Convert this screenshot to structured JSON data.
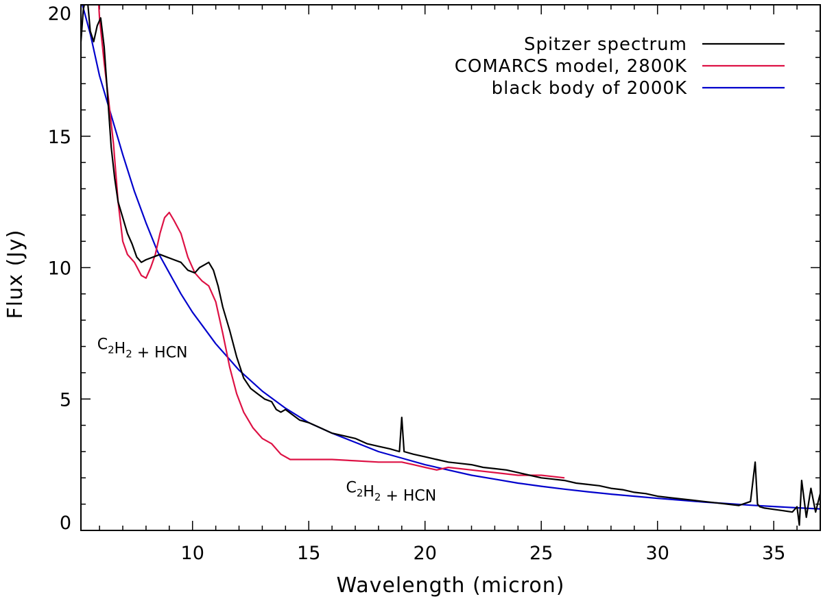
{
  "chart_data": {
    "type": "line",
    "title": "",
    "xlabel": "Wavelength (micron)",
    "ylabel": "Flux (Jy)",
    "xlim": [
      5.2,
      37.0
    ],
    "ylim": [
      0,
      20
    ],
    "xticks": [
      10,
      15,
      20,
      25,
      30,
      35
    ],
    "yticks": [
      0,
      5,
      10,
      15,
      20
    ],
    "xminor_step": 1,
    "yminor_step": 1,
    "legend_position": "top-right",
    "series": [
      {
        "name": "Spitzer spectrum",
        "color": "#000000",
        "x": [
          5.2,
          5.3,
          5.45,
          5.6,
          5.75,
          5.9,
          6.05,
          6.2,
          6.35,
          6.5,
          6.65,
          6.8,
          7.0,
          7.2,
          7.4,
          7.6,
          7.8,
          8.0,
          8.3,
          8.6,
          8.9,
          9.2,
          9.5,
          9.8,
          10.1,
          10.3,
          10.5,
          10.7,
          10.9,
          11.1,
          11.3,
          11.6,
          11.9,
          12.2,
          12.5,
          12.8,
          13.1,
          13.4,
          13.6,
          13.8,
          14.0,
          14.3,
          14.6,
          15.0,
          15.5,
          16.0,
          16.5,
          17.0,
          17.5,
          18.0,
          18.5,
          18.9,
          19.0,
          19.1,
          19.5,
          20.0,
          20.5,
          21.0,
          21.5,
          22.0,
          22.5,
          23.0,
          23.5,
          24.0,
          24.5,
          25.0,
          25.5,
          26.0,
          26.5,
          27.0,
          27.5,
          28.0,
          28.5,
          29.0,
          29.5,
          30.0,
          30.5,
          31.0,
          31.5,
          32.0,
          32.5,
          33.0,
          33.5,
          34.0,
          34.2,
          34.3,
          34.4,
          34.6,
          35.0,
          35.4,
          35.8,
          36.0,
          36.1,
          36.2,
          36.4,
          36.6,
          36.8,
          37.0
        ],
        "y": [
          18.6,
          19.8,
          20.5,
          19.0,
          18.6,
          19.2,
          19.5,
          18.4,
          16.5,
          14.6,
          13.4,
          12.5,
          11.9,
          11.3,
          10.9,
          10.4,
          10.2,
          10.3,
          10.4,
          10.5,
          10.4,
          10.3,
          10.2,
          9.9,
          9.8,
          10.0,
          10.1,
          10.2,
          9.9,
          9.3,
          8.5,
          7.6,
          6.6,
          5.8,
          5.4,
          5.2,
          5.0,
          4.9,
          4.6,
          4.5,
          4.6,
          4.4,
          4.2,
          4.1,
          3.9,
          3.7,
          3.6,
          3.5,
          3.3,
          3.2,
          3.1,
          3.0,
          4.3,
          3.0,
          2.9,
          2.8,
          2.7,
          2.6,
          2.55,
          2.5,
          2.4,
          2.35,
          2.3,
          2.2,
          2.1,
          2.0,
          1.95,
          1.9,
          1.8,
          1.75,
          1.7,
          1.6,
          1.55,
          1.45,
          1.4,
          1.3,
          1.25,
          1.2,
          1.15,
          1.1,
          1.05,
          1.0,
          0.95,
          1.1,
          2.6,
          1.0,
          0.9,
          0.85,
          0.8,
          0.75,
          0.7,
          0.9,
          0.2,
          1.9,
          0.5,
          1.6,
          0.7,
          1.4
        ]
      },
      {
        "name": "COMARCS model, 2800K",
        "color": "#dd1144",
        "x": [
          5.9,
          6.0,
          6.2,
          6.4,
          6.6,
          6.8,
          7.0,
          7.2,
          7.5,
          7.8,
          8.0,
          8.2,
          8.4,
          8.6,
          8.8,
          9.0,
          9.2,
          9.5,
          9.8,
          10.1,
          10.4,
          10.7,
          11.0,
          11.3,
          11.6,
          11.9,
          12.2,
          12.6,
          13.0,
          13.4,
          13.8,
          14.2,
          14.6,
          15.0,
          16.0,
          17.0,
          18.0,
          19.0,
          19.5,
          20.0,
          20.5,
          21.0,
          22.0,
          23.0,
          24.0,
          25.0,
          26.0
        ],
        "y": [
          21.0,
          19.5,
          17.8,
          16.3,
          14.7,
          12.5,
          11.0,
          10.5,
          10.2,
          9.7,
          9.6,
          10.0,
          10.5,
          11.3,
          11.9,
          12.1,
          11.8,
          11.3,
          10.4,
          9.8,
          9.5,
          9.3,
          8.7,
          7.5,
          6.2,
          5.2,
          4.5,
          3.9,
          3.5,
          3.3,
          2.9,
          2.7,
          2.7,
          2.7,
          2.7,
          2.65,
          2.6,
          2.6,
          2.5,
          2.4,
          2.3,
          2.4,
          2.3,
          2.2,
          2.1,
          2.1,
          2.0
        ]
      },
      {
        "name": "black body of 2000K",
        "color": "#0000cc",
        "x": [
          5.2,
          5.6,
          6.0,
          6.5,
          7.0,
          7.5,
          8.0,
          8.5,
          9.0,
          9.5,
          10.0,
          10.5,
          11.0,
          11.5,
          12.0,
          13.0,
          14.0,
          15.0,
          16.0,
          17.0,
          18.0,
          19.0,
          20.0,
          21.0,
          22.0,
          23.0,
          24.0,
          25.0,
          26.0,
          27.0,
          28.0,
          29.0,
          30.0,
          31.0,
          32.0,
          33.0,
          34.0,
          35.0,
          36.0,
          37.0
        ],
        "y": [
          20.2,
          18.9,
          17.3,
          15.8,
          14.3,
          12.9,
          11.7,
          10.6,
          9.8,
          9.0,
          8.3,
          7.7,
          7.1,
          6.6,
          6.1,
          5.3,
          4.65,
          4.1,
          3.7,
          3.35,
          3.0,
          2.75,
          2.5,
          2.3,
          2.1,
          1.95,
          1.8,
          1.68,
          1.57,
          1.47,
          1.38,
          1.3,
          1.22,
          1.15,
          1.08,
          1.02,
          0.96,
          0.91,
          0.86,
          0.82
        ]
      }
    ],
    "annotations": [
      {
        "id": "annot-upper",
        "parts": [
          [
            "C",
            false
          ],
          [
            "2",
            true
          ],
          [
            "H",
            false
          ],
          [
            "2",
            true
          ],
          [
            " + HCN",
            false
          ]
        ],
        "x": 5.9,
        "y": 6.9
      },
      {
        "id": "annot-lower",
        "parts": [
          [
            "C",
            false
          ],
          [
            "2",
            true
          ],
          [
            "H",
            false
          ],
          [
            "2",
            true
          ],
          [
            " + HCN",
            false
          ]
        ],
        "x": 16.6,
        "y": 1.45
      }
    ]
  }
}
